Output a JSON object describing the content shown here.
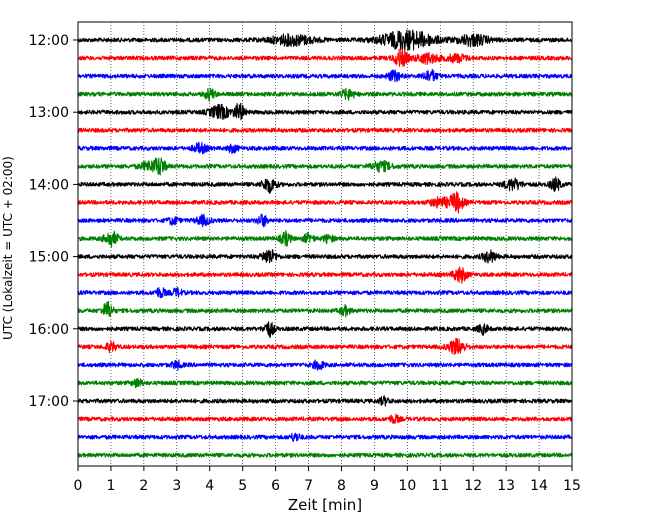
{
  "chart_data": {
    "type": "line",
    "title": "",
    "xlabel": "Zeit  [min]",
    "ylabel": "UTC (Lokalzeit = UTC + 02:00)",
    "xlim": [
      0,
      15
    ],
    "x_ticks": [
      "0",
      "1",
      "2",
      "3",
      "4",
      "5",
      "6",
      "7",
      "8",
      "9",
      "10",
      "11",
      "12",
      "13",
      "14",
      "15"
    ],
    "y_ticks": [
      "12:00",
      "13:00",
      "14:00",
      "15:00",
      "16:00",
      "17:00"
    ],
    "grid": "vertical dotted at each minute",
    "colors_cycle": [
      "#000000",
      "#ff0000",
      "#0000ff",
      "#008000"
    ],
    "row_interval_minutes": 15,
    "series": [
      {
        "start": "12:00",
        "color": "#000000",
        "events": [
          [
            6.5,
            0.55,
            1.2
          ],
          [
            10.0,
            1.0,
            1.5
          ],
          [
            12.0,
            0.6,
            0.8
          ]
        ]
      },
      {
        "start": "12:15",
        "color": "#ff0000",
        "events": [
          [
            9.8,
            0.9,
            0.3
          ],
          [
            10.6,
            0.5,
            0.6
          ],
          [
            11.5,
            0.4,
            0.5
          ]
        ]
      },
      {
        "start": "12:30",
        "color": "#0000ff",
        "events": [
          [
            9.6,
            0.5,
            0.3
          ],
          [
            10.7,
            0.6,
            0.3
          ]
        ]
      },
      {
        "start": "12:45",
        "color": "#008000",
        "events": [
          [
            4.0,
            0.6,
            0.2
          ],
          [
            8.2,
            0.5,
            0.3
          ]
        ]
      },
      {
        "start": "13:00",
        "color": "#000000",
        "events": [
          [
            4.3,
            0.7,
            0.5
          ],
          [
            4.9,
            0.9,
            0.2
          ]
        ]
      },
      {
        "start": "13:15",
        "color": "#ff0000",
        "events": []
      },
      {
        "start": "13:30",
        "color": "#0000ff",
        "events": [
          [
            3.7,
            0.5,
            0.3
          ],
          [
            4.7,
            0.4,
            0.2
          ]
        ]
      },
      {
        "start": "13:45",
        "color": "#008000",
        "events": [
          [
            2.2,
            0.5,
            0.5
          ],
          [
            2.5,
            0.8,
            0.2
          ],
          [
            9.2,
            0.5,
            0.5
          ]
        ]
      },
      {
        "start": "14:00",
        "color": "#000000",
        "events": [
          [
            5.8,
            0.8,
            0.3
          ],
          [
            13.2,
            0.6,
            0.4
          ],
          [
            14.5,
            0.7,
            0.2
          ]
        ]
      },
      {
        "start": "14:15",
        "color": "#ff0000",
        "events": [
          [
            11.5,
            1.0,
            0.3
          ],
          [
            11.0,
            0.5,
            0.5
          ]
        ]
      },
      {
        "start": "14:30",
        "color": "#0000ff",
        "events": [
          [
            3.8,
            0.5,
            0.3
          ],
          [
            5.6,
            0.6,
            0.2
          ],
          [
            2.9,
            0.4,
            0.2
          ]
        ]
      },
      {
        "start": "14:45",
        "color": "#008000",
        "events": [
          [
            1.0,
            0.8,
            0.3
          ],
          [
            6.3,
            0.7,
            0.2
          ],
          [
            7.0,
            0.5,
            0.2
          ],
          [
            7.6,
            0.4,
            0.2
          ]
        ]
      },
      {
        "start": "15:00",
        "color": "#000000",
        "events": [
          [
            5.8,
            0.8,
            0.3
          ],
          [
            12.5,
            0.6,
            0.3
          ]
        ]
      },
      {
        "start": "15:15",
        "color": "#ff0000",
        "events": [
          [
            11.6,
            0.8,
            0.3
          ]
        ]
      },
      {
        "start": "15:30",
        "color": "#0000ff",
        "events": [
          [
            2.5,
            0.5,
            0.2
          ],
          [
            3.0,
            0.4,
            0.2
          ]
        ]
      },
      {
        "start": "15:45",
        "color": "#008000",
        "events": [
          [
            0.9,
            0.9,
            0.2
          ],
          [
            8.1,
            0.5,
            0.2
          ]
        ]
      },
      {
        "start": "16:00",
        "color": "#000000",
        "events": [
          [
            5.8,
            0.8,
            0.2
          ],
          [
            12.3,
            0.5,
            0.2
          ]
        ]
      },
      {
        "start": "16:15",
        "color": "#ff0000",
        "events": [
          [
            1.0,
            0.5,
            0.2
          ],
          [
            11.5,
            0.8,
            0.4
          ]
        ]
      },
      {
        "start": "16:30",
        "color": "#0000ff",
        "events": [
          [
            3.0,
            0.4,
            0.2
          ],
          [
            7.3,
            0.5,
            0.2
          ]
        ]
      },
      {
        "start": "16:45",
        "color": "#008000",
        "events": [
          [
            1.8,
            0.4,
            0.2
          ]
        ]
      },
      {
        "start": "17:00",
        "color": "#000000",
        "events": [
          [
            9.3,
            0.4,
            0.2
          ]
        ]
      },
      {
        "start": "17:15",
        "color": "#ff0000",
        "events": [
          [
            9.6,
            0.4,
            0.2
          ]
        ]
      },
      {
        "start": "17:30",
        "color": "#0000ff",
        "events": [
          [
            6.6,
            0.4,
            0.2
          ]
        ]
      },
      {
        "start": "17:45",
        "color": "#008000",
        "events": []
      }
    ]
  }
}
